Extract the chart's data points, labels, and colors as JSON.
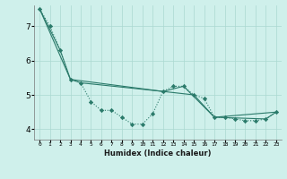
{
  "background_color": "#cff0eb",
  "grid_color": "#aad8d0",
  "line_color": "#2a7a6a",
  "xlabel": "Humidex (Indice chaleur)",
  "xlim": [
    -0.5,
    23.5
  ],
  "ylim": [
    3.7,
    7.6
  ],
  "yticks": [
    4,
    5,
    6,
    7
  ],
  "xtick_labels": [
    "0",
    "1",
    "2",
    "3",
    "4",
    "5",
    "6",
    "7",
    "8",
    "9",
    "10",
    "11",
    "12",
    "13",
    "14",
    "15",
    "16",
    "17",
    "18",
    "19",
    "20",
    "21",
    "22",
    "23"
  ],
  "series_dotted": {
    "x": [
      0,
      1,
      2,
      3,
      4,
      5,
      6,
      7,
      8,
      9,
      10,
      11,
      12,
      13,
      14,
      15,
      16,
      17,
      18,
      19,
      20,
      21,
      22,
      23
    ],
    "y": [
      7.5,
      7.0,
      6.3,
      5.45,
      5.35,
      4.8,
      4.55,
      4.55,
      4.35,
      4.15,
      4.15,
      4.45,
      5.1,
      5.25,
      5.25,
      5.0,
      4.9,
      4.35,
      4.35,
      4.3,
      4.25,
      4.25,
      4.3,
      4.5
    ]
  },
  "series_line1": {
    "x": [
      0,
      2,
      3,
      12,
      14,
      17,
      22,
      23
    ],
    "y": [
      7.5,
      6.3,
      5.45,
      5.1,
      5.25,
      4.35,
      4.3,
      4.5
    ]
  },
  "series_line2": {
    "x": [
      0,
      3,
      4,
      12,
      15,
      17,
      23
    ],
    "y": [
      7.5,
      5.45,
      5.35,
      5.1,
      5.0,
      4.35,
      4.5
    ]
  }
}
